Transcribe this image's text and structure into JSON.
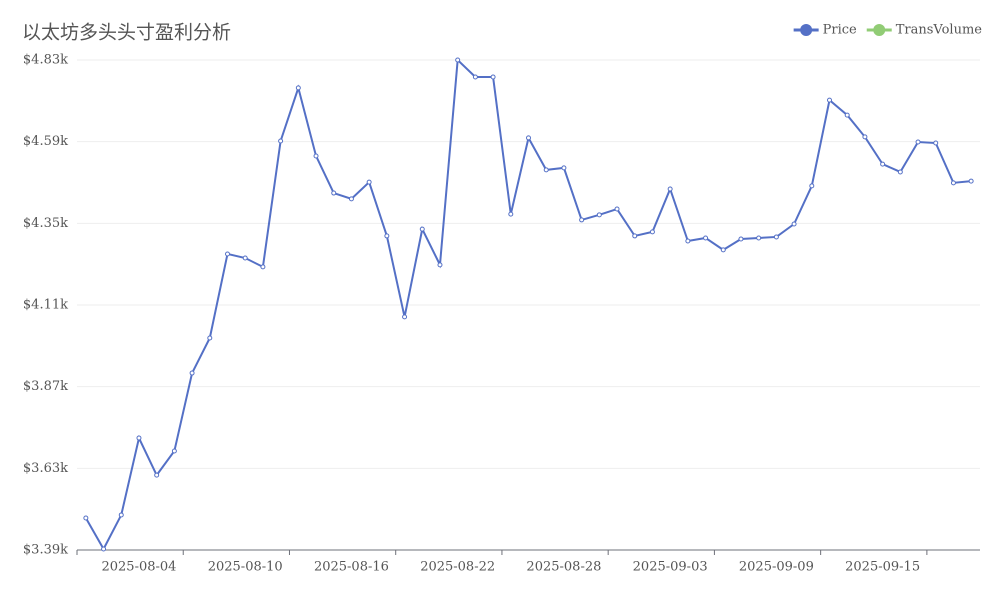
{
  "chart_data": {
    "type": "line",
    "title": "以太坊多头头寸盈利分析",
    "categories": [
      null,
      null,
      null,
      "2025-08-04",
      null,
      null,
      null,
      null,
      null,
      "2025-08-10",
      null,
      null,
      null,
      null,
      null,
      "2025-08-16",
      null,
      null,
      null,
      null,
      null,
      "2025-08-22",
      null,
      null,
      null,
      null,
      null,
      "2025-08-28",
      null,
      null,
      null,
      null,
      null,
      "2025-09-03",
      null,
      null,
      null,
      null,
      null,
      "2025-09-09",
      null,
      null,
      null,
      null,
      null,
      "2025-09-15",
      null,
      null,
      null,
      null,
      null
    ],
    "series": [
      {
        "name": "Price",
        "color": "#5470c6",
        "values": [
          3484,
          3393,
          3493,
          3719,
          3610,
          3681,
          3910,
          4013,
          4260,
          4248,
          4222,
          4592,
          4748,
          4548,
          4439,
          4422,
          4471,
          4313,
          4075,
          4333,
          4228,
          4830,
          4780,
          4780,
          4377,
          4601,
          4507,
          4513,
          4360,
          4375,
          4392,
          4313,
          4325,
          4451,
          4298,
          4307,
          4272,
          4304,
          4307,
          4310,
          4348,
          4460,
          4712,
          4668,
          4604,
          4524,
          4501,
          4589,
          4586,
          4469,
          4474
        ]
      },
      {
        "name": "TransVolume",
        "color": "#91cc75",
        "values": [
          null,
          null,
          null,
          null,
          null,
          null,
          null,
          null,
          null,
          null,
          null,
          null,
          null,
          null,
          null,
          null,
          null,
          null,
          null,
          null,
          null,
          null,
          null,
          null,
          null,
          null,
          null,
          null,
          null,
          null,
          null,
          null,
          null,
          null,
          null,
          null,
          null,
          null,
          null,
          null,
          null,
          null,
          null,
          null,
          null,
          null,
          null,
          null,
          null,
          null,
          null
        ]
      }
    ],
    "ylim": [
      3390,
      4830
    ],
    "yticks": [
      {
        "value": 3390,
        "label": "$3.39k"
      },
      {
        "value": 3630,
        "label": "$3.63k"
      },
      {
        "value": 3870,
        "label": "$3.87k"
      },
      {
        "value": 4110,
        "label": "$4.11k"
      },
      {
        "value": 4350,
        "label": "$4.35k"
      },
      {
        "value": 4590,
        "label": "$4.59k"
      },
      {
        "value": 4830,
        "label": "$4.83k"
      }
    ],
    "grid": true,
    "legend": "top-right"
  }
}
